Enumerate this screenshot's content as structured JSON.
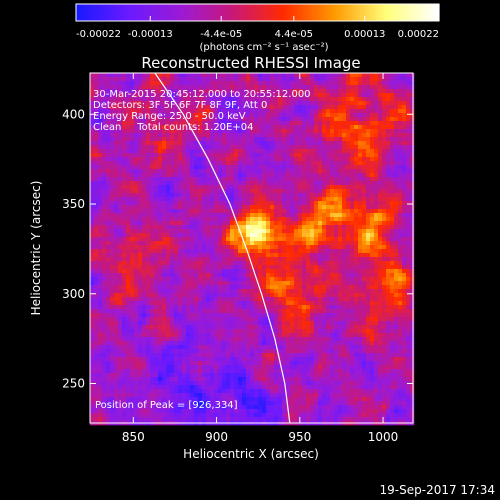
{
  "chart_data": {
    "type": "heatmap",
    "title": "Reconstructed RHESSI Image",
    "xlabel": "Heliocentric X (arcsec)",
    "ylabel": "Heliocentric Y (arcsec)",
    "xlim": [
      824,
      1018
    ],
    "ylim": [
      228,
      423
    ],
    "x_ticks": [
      850,
      900,
      950,
      1000
    ],
    "y_ticks": [
      250,
      300,
      350,
      400
    ],
    "colorbar": {
      "label": "(photons cm⁻² s⁻¹ asec⁻²)",
      "range": [
        -0.00022,
        0.00022
      ],
      "ticks": [
        "-0.00022",
        "-0.00013",
        "-4.4e-05",
        "4.4e-05",
        "0.00013",
        "0.00022"
      ],
      "colors": [
        "#1a1aff",
        "#6a1aff",
        "#9b1ad6",
        "#c8187a",
        "#ff2a00",
        "#ff9a00",
        "#ffff7a",
        "#ffffff"
      ]
    },
    "info_lines": [
      "30-Mar-2015 20:45:12.000 to 20:55:12.000",
      "Detectors: 3F 5F 6F 7F 8F 9F, Att 0",
      "Energy Range: 25.0 - 50.0 keV",
      "Clean     Total counts: 1.20E+04"
    ],
    "peak_label": "Position of Peak = [926,334]",
    "peak": [
      926,
      334
    ],
    "limb_curve": [
      [
        863,
        423
      ],
      [
        880,
        400
      ],
      [
        895,
        375
      ],
      [
        908,
        350
      ],
      [
        918,
        325
      ],
      [
        927,
        300
      ],
      [
        935,
        275
      ],
      [
        941,
        250
      ],
      [
        944,
        228
      ]
    ],
    "sources": [
      {
        "x": 924,
        "y": 334,
        "amp": 2.2,
        "s": 9
      },
      {
        "x": 962,
        "y": 340,
        "amp": 1.3,
        "s": 12
      },
      {
        "x": 995,
        "y": 338,
        "amp": 1.2,
        "s": 11
      },
      {
        "x": 945,
        "y": 305,
        "amp": 1.0,
        "s": 14
      },
      {
        "x": 985,
        "y": 395,
        "amp": 0.9,
        "s": 18
      },
      {
        "x": 1005,
        "y": 300,
        "amp": 0.8,
        "s": 15
      },
      {
        "x": 850,
        "y": 320,
        "amp": 0.5,
        "s": 16
      },
      {
        "x": 870,
        "y": 395,
        "amp": 0.35,
        "s": 15
      },
      {
        "x": 880,
        "y": 250,
        "amp": -0.5,
        "s": 18
      },
      {
        "x": 915,
        "y": 235,
        "amp": -0.7,
        "s": 12
      }
    ],
    "noise_amp": 0.45
  },
  "timestamp": "19-Sep-2017 17:34"
}
